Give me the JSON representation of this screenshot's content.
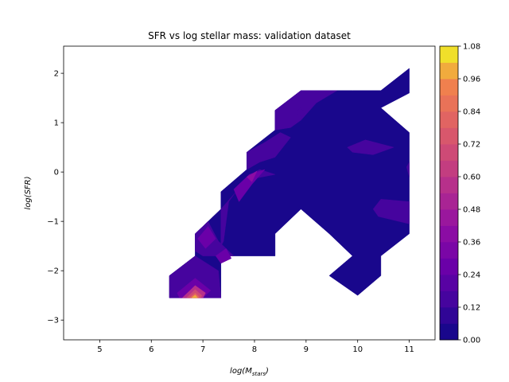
{
  "chart_data": {
    "type": "heatmap",
    "subtype": "filled-contour",
    "title": "SFR vs log stellar mass: validation dataset",
    "xlabel": {
      "prefix": "log(M",
      "sub": "stars",
      "suffix": ")"
    },
    "ylabel": "log(SFR)",
    "xlim": [
      4.3,
      11.5
    ],
    "ylim": [
      -3.4,
      2.55
    ],
    "x_ticks": [
      5,
      6,
      7,
      8,
      9,
      10,
      11
    ],
    "x_tick_labels": [
      "5",
      "6",
      "7",
      "8",
      "9",
      "10",
      "11"
    ],
    "y_ticks": [
      -3,
      -2,
      -1,
      0,
      1,
      2
    ],
    "y_tick_labels": [
      "−3",
      "−2",
      "−1",
      "0",
      "1",
      "2"
    ],
    "colorbar": {
      "colormap": "plasma",
      "min": 0.0,
      "max": 1.08,
      "levels": 18,
      "ticks": [
        0.0,
        0.12,
        0.24,
        0.36,
        0.48,
        0.6,
        0.72,
        0.84,
        0.96,
        1.08
      ],
      "tick_labels": [
        "0.00",
        "0.12",
        "0.24",
        "0.36",
        "0.48",
        "0.60",
        "0.72",
        "0.84",
        "0.96",
        "1.08"
      ]
    },
    "filled_regions": [
      {
        "value": 0.03,
        "points": [
          [
            6.35,
            -2.1
          ],
          [
            6.85,
            -1.7
          ],
          [
            6.85,
            -1.25
          ],
          [
            7.35,
            -0.75
          ],
          [
            7.35,
            -0.4
          ],
          [
            7.85,
            0.05
          ],
          [
            7.85,
            0.4
          ],
          [
            8.4,
            0.85
          ],
          [
            8.4,
            1.25
          ],
          [
            8.9,
            1.65
          ],
          [
            9.9,
            1.65
          ],
          [
            10.45,
            1.65
          ],
          [
            11.0,
            2.1
          ],
          [
            11.0,
            1.6
          ],
          [
            10.45,
            1.3
          ],
          [
            11.0,
            0.8
          ],
          [
            11.0,
            -1.25
          ],
          [
            10.45,
            -1.7
          ],
          [
            10.45,
            -2.1
          ],
          [
            10.0,
            -2.5
          ],
          [
            9.45,
            -2.1
          ],
          [
            9.9,
            -1.7
          ],
          [
            9.45,
            -1.25
          ],
          [
            8.9,
            -0.75
          ],
          [
            8.4,
            -1.25
          ],
          [
            8.4,
            -1.7
          ],
          [
            7.35,
            -1.7
          ],
          [
            7.35,
            -2.1
          ],
          [
            7.35,
            -2.55
          ],
          [
            6.35,
            -2.55
          ]
        ]
      },
      {
        "value": 0.15,
        "points": [
          [
            8.4,
            1.25
          ],
          [
            8.9,
            1.65
          ],
          [
            9.6,
            1.65
          ],
          [
            9.2,
            1.4
          ],
          [
            8.9,
            1.05
          ],
          [
            8.7,
            0.9
          ],
          [
            8.4,
            0.85
          ]
        ]
      },
      {
        "value": 0.15,
        "points": [
          [
            7.85,
            0.4
          ],
          [
            8.2,
            0.6
          ],
          [
            8.5,
            0.8
          ],
          [
            8.7,
            0.7
          ],
          [
            8.4,
            0.3
          ],
          [
            8.1,
            0.2
          ],
          [
            7.85,
            0.05
          ]
        ]
      },
      {
        "value": 0.15,
        "points": [
          [
            7.35,
            -0.75
          ],
          [
            7.6,
            -0.45
          ],
          [
            7.9,
            -0.15
          ],
          [
            8.4,
            -0.05
          ],
          [
            8.1,
            0.05
          ],
          [
            7.85,
            -0.1
          ],
          [
            7.5,
            -0.6
          ],
          [
            7.4,
            -1.4
          ],
          [
            7.35,
            -1.5
          ]
        ]
      },
      {
        "value": 0.15,
        "points": [
          [
            6.85,
            -1.25
          ],
          [
            7.1,
            -1.0
          ],
          [
            7.3,
            -1.4
          ],
          [
            7.6,
            -1.7
          ],
          [
            7.0,
            -1.7
          ],
          [
            6.85,
            -1.6
          ]
        ]
      },
      {
        "value": 0.15,
        "points": [
          [
            6.35,
            -2.1
          ],
          [
            6.85,
            -1.7
          ],
          [
            7.3,
            -2.0
          ],
          [
            7.35,
            -2.55
          ],
          [
            6.35,
            -2.55
          ]
        ]
      },
      {
        "value": 0.15,
        "points": [
          [
            9.8,
            0.5
          ],
          [
            10.15,
            0.65
          ],
          [
            10.7,
            0.5
          ],
          [
            10.3,
            0.35
          ],
          [
            9.9,
            0.4
          ]
        ]
      },
      {
        "value": 0.15,
        "points": [
          [
            10.3,
            -0.75
          ],
          [
            10.45,
            -0.55
          ],
          [
            11.0,
            -0.6
          ],
          [
            11.0,
            -1.05
          ],
          [
            10.4,
            -0.9
          ]
        ]
      },
      {
        "value": 0.15,
        "points": [
          [
            10.95,
            0.1
          ],
          [
            11.0,
            0.2
          ],
          [
            11.0,
            -0.1
          ]
        ]
      },
      {
        "value": 0.15,
        "points": [
          [
            8.88,
            1.3
          ],
          [
            8.98,
            1.22
          ],
          [
            8.92,
            1.12
          ],
          [
            8.8,
            1.2
          ]
        ]
      },
      {
        "value": 0.3,
        "points": [
          [
            7.6,
            -0.35
          ],
          [
            7.9,
            -0.05
          ],
          [
            8.2,
            0.05
          ],
          [
            7.95,
            -0.25
          ],
          [
            7.7,
            -0.6
          ]
        ]
      },
      {
        "value": 0.3,
        "points": [
          [
            6.9,
            -1.35
          ],
          [
            7.1,
            -1.1
          ],
          [
            7.25,
            -1.35
          ],
          [
            7.05,
            -1.55
          ]
        ]
      },
      {
        "value": 0.3,
        "points": [
          [
            7.25,
            -1.7
          ],
          [
            7.45,
            -1.55
          ],
          [
            7.55,
            -1.75
          ],
          [
            7.35,
            -1.85
          ]
        ]
      },
      {
        "value": 0.3,
        "points": [
          [
            6.5,
            -2.45
          ],
          [
            6.85,
            -2.15
          ],
          [
            7.15,
            -2.4
          ],
          [
            7.0,
            -2.55
          ],
          [
            6.55,
            -2.55
          ]
        ]
      },
      {
        "value": 0.42,
        "points": [
          [
            7.85,
            -0.1
          ],
          [
            8.05,
            0.02
          ],
          [
            7.95,
            -0.2
          ]
        ]
      },
      {
        "value": 0.54,
        "points": [
          [
            6.6,
            -2.55
          ],
          [
            6.85,
            -2.3
          ],
          [
            7.05,
            -2.45
          ],
          [
            7.0,
            -2.55
          ]
        ]
      },
      {
        "value": 0.66,
        "points": [
          [
            6.68,
            -2.55
          ],
          [
            6.85,
            -2.38
          ],
          [
            6.98,
            -2.5
          ],
          [
            6.96,
            -2.55
          ]
        ]
      },
      {
        "value": 0.8,
        "points": [
          [
            6.74,
            -2.55
          ],
          [
            6.85,
            -2.45
          ],
          [
            6.93,
            -2.53
          ],
          [
            6.92,
            -2.55
          ]
        ]
      },
      {
        "value": 1.0,
        "points": [
          [
            6.78,
            -2.55
          ],
          [
            6.85,
            -2.49
          ],
          [
            6.9,
            -2.55
          ]
        ]
      }
    ]
  }
}
